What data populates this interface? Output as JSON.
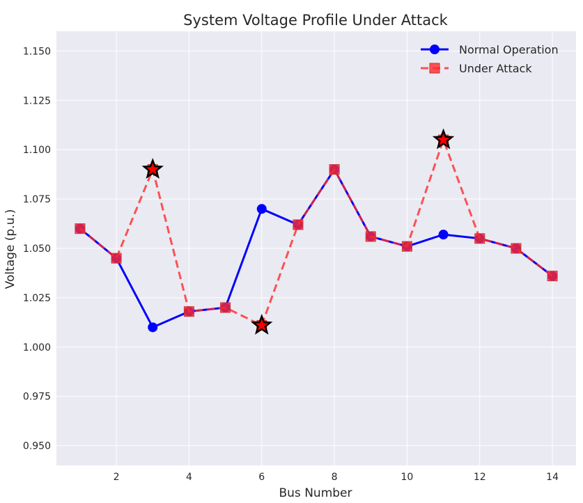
{
  "chart_data": {
    "type": "line",
    "title": "System Voltage Profile Under Attack",
    "xlabel": "Bus Number",
    "ylabel": "Voltage (p.u.)",
    "xlim": [
      0.35,
      14.65
    ],
    "ylim": [
      0.94,
      1.16
    ],
    "x_ticks": [
      2,
      4,
      6,
      8,
      10,
      12,
      14
    ],
    "y_ticks": [
      0.95,
      0.975,
      1.0,
      1.025,
      1.05,
      1.075,
      1.1,
      1.125,
      1.15
    ],
    "y_tick_labels": [
      "0.950",
      "0.975",
      "1.000",
      "1.025",
      "1.050",
      "1.075",
      "1.100",
      "1.125",
      "1.150"
    ],
    "x": [
      1,
      2,
      3,
      4,
      5,
      6,
      7,
      8,
      9,
      10,
      11,
      12,
      13,
      14
    ],
    "grid": true,
    "legend_position": "top-right",
    "series": [
      {
        "name": "Normal Operation",
        "color": "#0000ff",
        "line_style": "solid",
        "marker": "circle",
        "values": [
          1.06,
          1.045,
          1.01,
          1.018,
          1.02,
          1.07,
          1.062,
          1.09,
          1.056,
          1.051,
          1.057,
          1.055,
          1.05,
          1.036
        ]
      },
      {
        "name": "Under Attack",
        "color": "#ff2a2a",
        "line_style": "dashed",
        "marker": "square",
        "values": [
          1.06,
          1.045,
          1.09,
          1.018,
          1.02,
          1.011,
          1.062,
          1.09,
          1.056,
          1.051,
          1.105,
          1.055,
          1.05,
          1.036
        ]
      }
    ],
    "highlighted_points": {
      "marker": "star",
      "color": "#ff0000",
      "edge_color": "#000000",
      "x": [
        3,
        6,
        11
      ],
      "values": [
        1.09,
        1.011,
        1.105
      ]
    }
  }
}
